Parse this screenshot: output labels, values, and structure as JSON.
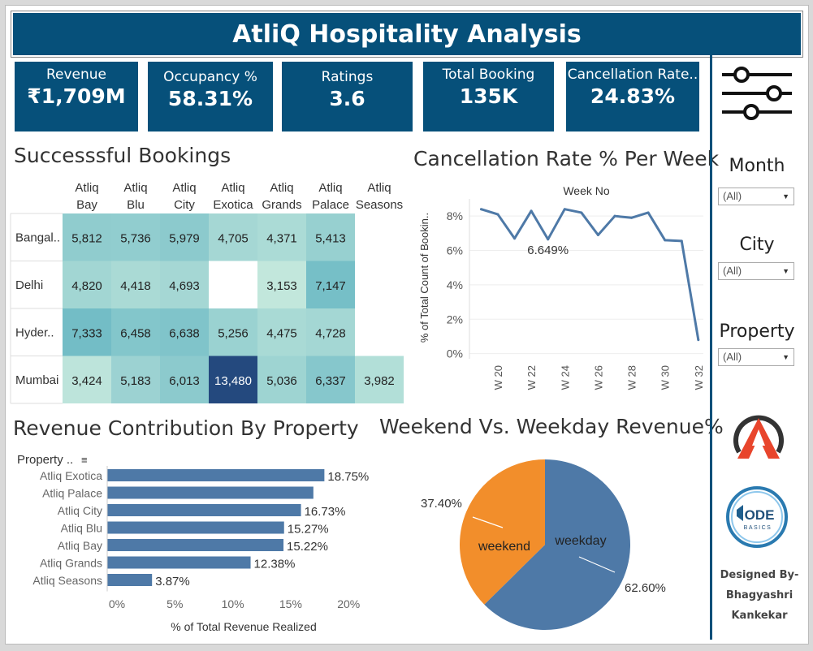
{
  "title": "AtliQ Hospitality Analysis",
  "kpis": [
    {
      "label": "Revenue",
      "value": "₹1,709M"
    },
    {
      "label": "Occupancy %",
      "value": "58.31%"
    },
    {
      "label": "Ratings",
      "value": "3.6"
    },
    {
      "label": "Total Booking",
      "value": "135K"
    },
    {
      "label": "Cancellation Rate..",
      "value": "24.83%"
    }
  ],
  "sections": {
    "bookings": "Successsful Bookings",
    "cancellation": "Cancellation Rate % Per Week",
    "revenue": "Revenue Contribution By Property",
    "weekend": "Weekend Vs. Weekday Revenue%"
  },
  "filters": [
    {
      "label": "Month",
      "value": "(All)"
    },
    {
      "label": "City",
      "value": "(All)"
    },
    {
      "label": "Property",
      "value": "(All)"
    }
  ],
  "credit": [
    "Designed By-",
    "Bhagyashri",
    "Kankekar"
  ],
  "logo_text": {
    "code": "ODE",
    "basics": "BASICS"
  },
  "chart_data": [
    {
      "type": "heatmap",
      "title": "Successsful Bookings",
      "columns": [
        [
          "Atliq",
          "Bay"
        ],
        [
          "Atliq",
          "Blu"
        ],
        [
          "Atliq",
          "City"
        ],
        [
          "Atliq",
          "Exotica"
        ],
        [
          "Atliq",
          "Grands"
        ],
        [
          "Atliq",
          "Palace"
        ],
        [
          "Atliq",
          "Seasons"
        ]
      ],
      "rows": [
        "Bangal..",
        "Delhi",
        "Hyder..",
        "Mumbai"
      ],
      "values": [
        [
          5812,
          5736,
          5979,
          4705,
          4371,
          5413,
          null
        ],
        [
          4820,
          4418,
          4693,
          null,
          3153,
          7147,
          null
        ],
        [
          7333,
          6458,
          6638,
          5256,
          4475,
          4728,
          null
        ],
        [
          3424,
          5183,
          6013,
          13480,
          5036,
          6337,
          3982
        ]
      ],
      "labels": [
        [
          "5,812",
          "5,736",
          "5,979",
          "4,705",
          "4,371",
          "5,413",
          ""
        ],
        [
          "4,820",
          "4,418",
          "4,693",
          "",
          "3,153",
          "7,147",
          ""
        ],
        [
          "7,333",
          "6,458",
          "6,638",
          "5,256",
          "4,475",
          "4,728",
          ""
        ],
        [
          "3,424",
          "5,183",
          "6,013",
          "13,480",
          "5,036",
          "6,337",
          "3,982"
        ]
      ]
    },
    {
      "type": "line",
      "title": "Cancellation Rate % Per Week",
      "xlabel": "Week No",
      "ylabel": "% of Total Count of Bookin..",
      "x": [
        19,
        20,
        21,
        22,
        23,
        24,
        25,
        26,
        27,
        28,
        29,
        30,
        31,
        32
      ],
      "x_ticks": [
        "W 20",
        "W 22",
        "W 24",
        "W 26",
        "W 28",
        "W 30",
        "W 32"
      ],
      "x_tick_values": [
        20,
        22,
        24,
        26,
        28,
        30,
        32
      ],
      "y": [
        8.4,
        8.1,
        6.7,
        8.3,
        6.649,
        8.4,
        8.2,
        6.9,
        8.0,
        7.9,
        8.2,
        6.6,
        6.55,
        0.8
      ],
      "annotation": "6.649%",
      "annotation_index": 4,
      "y_ticks": [
        "0%",
        "2%",
        "4%",
        "6%",
        "8%"
      ],
      "y_tick_values": [
        0,
        2,
        4,
        6,
        8
      ],
      "ylim": [
        -0.3,
        9.0
      ],
      "color": "#4e79a7"
    },
    {
      "type": "bar",
      "title": "Revenue Contribution By Property",
      "legend_title": "Property ..",
      "xlabel": "% of Total Revenue Realized",
      "categories": [
        "Atliq Exotica",
        "Atliq Palace",
        "Atliq City",
        "Atliq Blu",
        "Atliq Bay",
        "Atliq Grands",
        "Atliq Seasons"
      ],
      "values": [
        18.75,
        17.8,
        16.73,
        15.27,
        15.22,
        12.38,
        3.87
      ],
      "labels": [
        "18.75%",
        "",
        "16.73%",
        "15.27%",
        "15.22%",
        "12.38%",
        "3.87%"
      ],
      "x_ticks": [
        "0%",
        "5%",
        "10%",
        "15%",
        "20%"
      ],
      "x_tick_values": [
        0,
        5,
        10,
        15,
        20
      ],
      "xlim": [
        0,
        23
      ],
      "color": "#4e79a7"
    },
    {
      "type": "pie",
      "title": "Weekend Vs. Weekday Revenue%",
      "categories": [
        "weekday",
        "weekend"
      ],
      "values": [
        62.6,
        37.4
      ],
      "labels": [
        "62.60%",
        "37.40%"
      ],
      "colors": [
        "#4e79a7",
        "#f28e2b"
      ]
    }
  ]
}
